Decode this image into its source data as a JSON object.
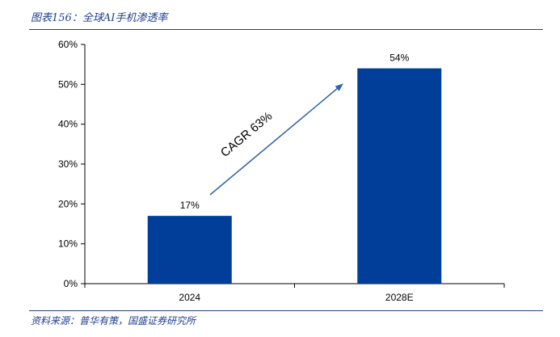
{
  "header": {
    "title": "图表156：全球AI手机渗透率"
  },
  "footer": {
    "source": "资料来源：普华有策，国盛证券研究所"
  },
  "chart_data": {
    "type": "bar",
    "categories": [
      "2024",
      "2028E"
    ],
    "values": [
      17,
      54
    ],
    "data_labels": [
      "17%",
      "54%"
    ],
    "ylim": [
      0,
      60
    ],
    "yticks": [
      0,
      10,
      20,
      30,
      40,
      50,
      60
    ],
    "ytick_labels": [
      "0%",
      "10%",
      "20%",
      "30%",
      "40%",
      "50%",
      "60%"
    ],
    "bar_color": "#003e99",
    "grid": false,
    "legend": "none",
    "annotation": {
      "text": "CAGR 63%",
      "arrow_color": "#2e63b0"
    }
  }
}
